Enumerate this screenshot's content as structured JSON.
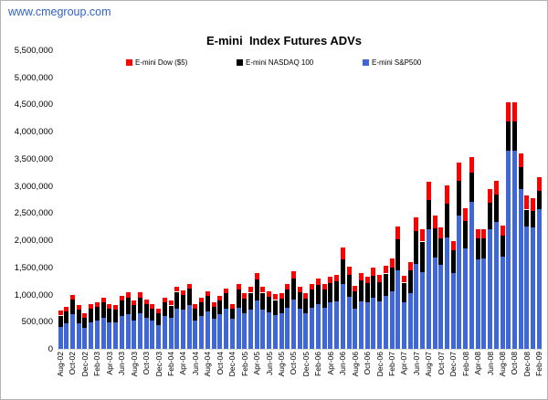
{
  "watermark": "www.cmegroup.com",
  "chart_data": {
    "type": "bar",
    "stacked": true,
    "title": "E-mini  Index Futures ADVs",
    "legend": [
      {
        "label": "E-mini Dow ($5)",
        "color": "#ff0000"
      },
      {
        "label": "E-mini NASDAQ 100",
        "color": "#000000"
      },
      {
        "label": "E-mini S&P500",
        "color": "#4067d8"
      }
    ],
    "legend_position": "top",
    "grid": "off",
    "y_axis": {
      "min": 0,
      "max": 5500000,
      "step": 500000,
      "tick_labels": [
        "5,500,000",
        "5,000,000",
        "4,500,000",
        "4,000,000",
        "3,500,000",
        "3,000,000",
        "2,500,000",
        "2,000,000",
        "1,500,000",
        "1,000,000",
        "500,000",
        "0"
      ]
    },
    "x_axis": {
      "label_every_n_months": 2,
      "tick_labels": [
        "Aug-02",
        "Oct-02",
        "Dec-02",
        "Feb-03",
        "Apr-03",
        "Jun-03",
        "Aug-03",
        "Oct-03",
        "Dec-03",
        "Feb-04",
        "Apr-04",
        "Jun-04",
        "Aug-04",
        "Oct-04",
        "Dec-04",
        "Feb-05",
        "Apr-05",
        "Jun-05",
        "Aug-05",
        "Oct-05",
        "Dec-05",
        "Feb-06",
        "Apr-06",
        "Jun-06",
        "Aug-06",
        "Oct-06",
        "Dec-06",
        "Feb-07",
        "Apr-07",
        "Jun-07",
        "Aug-07",
        "Oct-07",
        "Dec-07",
        "Feb-08",
        "Apr-08",
        "Jun-08",
        "Aug-08",
        "Oct-08",
        "Dec-08",
        "Feb-09"
      ]
    },
    "series_order_bottom_to_top": [
      "E-mini S&P500",
      "E-mini NASDAQ 100",
      "E-mini Dow ($5)"
    ],
    "columns": [
      "month",
      "sp500_adv",
      "nasdaq100_adv",
      "dow_adv"
    ],
    "months": [
      [
        "Aug-02",
        410000,
        210000,
        80000
      ],
      [
        "Sep-02",
        466000,
        224000,
        84000
      ],
      [
        "Oct-02",
        634000,
        280000,
        84000
      ],
      [
        "Nov-02",
        466000,
        252000,
        84000
      ],
      [
        "Dec-02",
        381000,
        196000,
        84000
      ],
      [
        "Jan-03",
        494000,
        252000,
        84000
      ],
      [
        "Feb-03",
        522000,
        252000,
        84000
      ],
      [
        "Mar-03",
        578000,
        280000,
        84000
      ],
      [
        "Apr-03",
        494000,
        252000,
        84000
      ],
      [
        "May-03",
        480000,
        238000,
        84000
      ],
      [
        "Jun-03",
        606000,
        280000,
        84000
      ],
      [
        "Jul-03",
        634000,
        308000,
        96000
      ],
      [
        "Aug-03",
        522000,
        280000,
        84000
      ],
      [
        "Sep-03",
        650000,
        290000,
        95000
      ],
      [
        "Oct-03",
        578000,
        252000,
        84000
      ],
      [
        "Nov-03",
        522000,
        224000,
        84000
      ],
      [
        "Dec-03",
        438000,
        224000,
        84000
      ],
      [
        "Jan-04",
        606000,
        252000,
        84000
      ],
      [
        "Feb-04",
        578000,
        224000,
        84000
      ],
      [
        "Mar-04",
        746000,
        308000,
        85000
      ],
      [
        "Apr-04",
        718000,
        280000,
        85000
      ],
      [
        "May-04",
        802000,
        308000,
        85000
      ],
      [
        "Jun-04",
        522000,
        224000,
        84000
      ],
      [
        "Jul-04",
        606000,
        252000,
        84000
      ],
      [
        "Aug-04",
        690000,
        280000,
        84000
      ],
      [
        "Sep-04",
        550000,
        224000,
        84000
      ],
      [
        "Oct-04",
        634000,
        252000,
        84000
      ],
      [
        "Nov-04",
        746000,
        280000,
        85000
      ],
      [
        "Dec-04",
        550000,
        196000,
        84000
      ],
      [
        "Jan-05",
        760000,
        330000,
        105000
      ],
      [
        "Feb-05",
        650000,
        280000,
        97000
      ],
      [
        "Mar-05",
        730000,
        310000,
        100000
      ],
      [
        "Apr-05",
        890000,
        380000,
        120000
      ],
      [
        "May-05",
        730000,
        310000,
        100000
      ],
      [
        "Jun-05",
        670000,
        290000,
        95000
      ],
      [
        "Jul-05",
        630000,
        270000,
        98000
      ],
      [
        "Aug-05",
        650000,
        280000,
        97000
      ],
      [
        "Sep-05",
        760000,
        330000,
        105000
      ],
      [
        "Oct-05",
        900000,
        390000,
        130000
      ],
      [
        "Nov-05",
        740000,
        310000,
        100000
      ],
      [
        "Dec-05",
        660000,
        270000,
        97000
      ],
      [
        "Jan-06",
        760000,
        330000,
        105000
      ],
      [
        "Feb-06",
        820000,
        350000,
        110000
      ],
      [
        "Mar-06",
        760000,
        330000,
        105000
      ],
      [
        "Apr-06",
        850000,
        365000,
        120000
      ],
      [
        "May-06",
        870000,
        370000,
        123000
      ],
      [
        "Jun-06",
        1200000,
        450000,
        220000
      ],
      [
        "Jul-06",
        960000,
        400000,
        143000
      ],
      [
        "Aug-06",
        740000,
        320000,
        107000
      ],
      [
        "Sep-06",
        880000,
        380000,
        131000
      ],
      [
        "Oct-06",
        850000,
        365000,
        120000
      ],
      [
        "Nov-06",
        950000,
        400000,
        150000
      ],
      [
        "Dec-06",
        870000,
        360000,
        133000
      ],
      [
        "Jan-07",
        980000,
        410000,
        140000
      ],
      [
        "Feb-07",
        1060000,
        440000,
        160000
      ],
      [
        "Mar-07",
        1450000,
        570000,
        230000
      ],
      [
        "Apr-07",
        860000,
        360000,
        120000
      ],
      [
        "May-07",
        1020000,
        430000,
        150000
      ],
      [
        "Jun-07",
        1560000,
        610000,
        250000
      ],
      [
        "Jul-07",
        1420000,
        560000,
        220000
      ],
      [
        "Aug-07",
        2210000,
        530000,
        340000
      ],
      [
        "Sep-07",
        1680000,
        540000,
        240000
      ],
      [
        "Oct-07",
        1550000,
        480000,
        210000
      ],
      [
        "Nov-07",
        2050000,
        620000,
        330000
      ],
      [
        "Dec-07",
        1400000,
        420000,
        170000
      ],
      [
        "Jan-08",
        2450000,
        640000,
        330000
      ],
      [
        "Feb-08",
        1850000,
        510000,
        230000
      ],
      [
        "Mar-08",
        2710000,
        530000,
        280000
      ],
      [
        "Apr-08",
        1650000,
        390000,
        170000
      ],
      [
        "May-08",
        1660000,
        380000,
        170000
      ],
      [
        "Jun-08",
        2200000,
        490000,
        260000
      ],
      [
        "Jul-08",
        2330000,
        510000,
        260000
      ],
      [
        "Aug-08",
        1700000,
        380000,
        180000
      ],
      [
        "Sep-08",
        3650000,
        540000,
        360000
      ],
      [
        "Oct-08",
        3650000,
        540000,
        360000
      ],
      [
        "Nov-08",
        2950000,
        400000,
        260000
      ],
      [
        "Dec-08",
        2260000,
        310000,
        250000
      ],
      [
        "Jan-09",
        2230000,
        310000,
        230000
      ],
      [
        "Feb-09",
        2570000,
        340000,
        260000
      ]
    ]
  }
}
